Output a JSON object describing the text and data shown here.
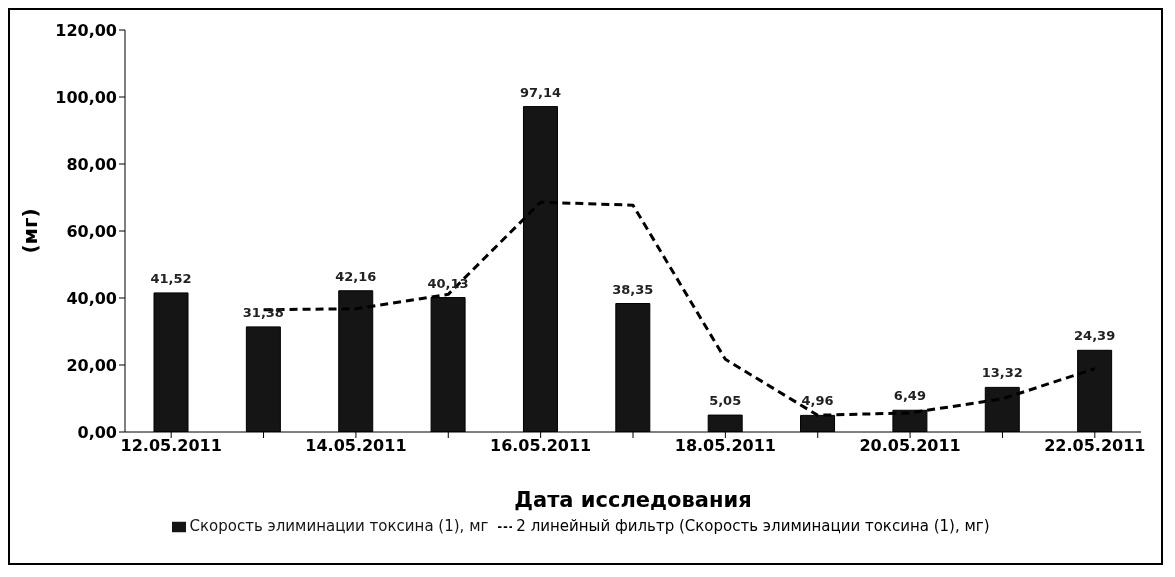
{
  "chart_data": {
    "type": "bar",
    "xlabel": "Дата исследования",
    "ylabel": "(мг)",
    "categories": [
      "12.05.2011",
      null,
      "14.05.2011",
      null,
      "16.05.2011",
      null,
      "18.05.2011",
      null,
      "20.05.2011",
      null,
      "22.05.2011"
    ],
    "series": [
      {
        "name": "Скорость элиминации токсина (1), мг",
        "color": "#151515",
        "values": [
          41.52,
          31.38,
          42.16,
          40.13,
          97.14,
          38.35,
          5.05,
          4.96,
          6.49,
          13.32,
          24.39
        ],
        "value_labels": [
          "41,52",
          "31,38",
          "42,16",
          "40,13",
          "97,14",
          "38,35",
          "5,05",
          "4,96",
          "6,49",
          "13,32",
          "24,39"
        ]
      },
      {
        "name": "2 линейный фильтр (Скорость элиминации токсина (1), мг)",
        "type": "line",
        "color": "#000000",
        "line_style": "dashed",
        "marker": "none",
        "values": [
          null,
          36.5,
          36.8,
          41.1,
          68.6,
          67.7,
          21.7,
          5.0,
          5.7,
          9.9,
          18.9
        ]
      }
    ],
    "ylim": [
      0,
      120
    ],
    "yticks": [
      {
        "value": 0,
        "label": "0,00"
      },
      {
        "value": 20,
        "label": "20,00"
      },
      {
        "value": 40,
        "label": "40,00"
      },
      {
        "value": 60,
        "label": "60,00"
      },
      {
        "value": 80,
        "label": "80,00"
      },
      {
        "value": 100,
        "label": "100,00"
      },
      {
        "value": 120,
        "label": "120,00"
      }
    ],
    "grid": false,
    "legend": "bottom"
  }
}
